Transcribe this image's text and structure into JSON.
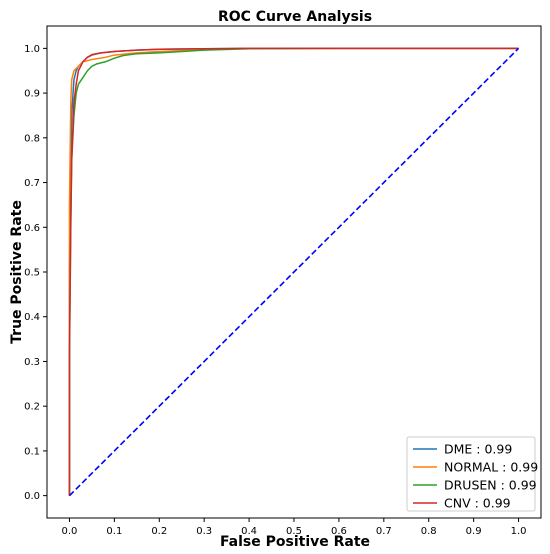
{
  "chart_data": {
    "type": "line",
    "title": "ROC Curve Analysis",
    "xlabel": "False Positive Rate",
    "ylabel": "True Positive Rate",
    "xlim": [
      -0.05,
      1.05
    ],
    "ylim": [
      -0.05,
      1.05
    ],
    "x_ticks": [
      0.0,
      0.1,
      0.2,
      0.3,
      0.4,
      0.5,
      0.6,
      0.7,
      0.8,
      0.9,
      1.0
    ],
    "y_ticks": [
      0.0,
      0.1,
      0.2,
      0.3,
      0.4,
      0.5,
      0.6,
      0.7,
      0.8,
      0.9,
      1.0
    ],
    "x_tick_labels": [
      "0.0",
      "0.1",
      "0.2",
      "0.3",
      "0.4",
      "0.5",
      "0.6",
      "0.7",
      "0.8",
      "0.9",
      "1.0"
    ],
    "y_tick_labels": [
      "0.0",
      "0.1",
      "0.2",
      "0.3",
      "0.4",
      "0.5",
      "0.6",
      "0.7",
      "0.8",
      "0.9",
      "1.0"
    ],
    "grid": false,
    "legend_position": "bottom-right",
    "series": [
      {
        "name": "DME : 0.99",
        "color": "#1f77b4",
        "x": [
          0.0,
          0.0,
          0.003,
          0.005,
          0.008,
          0.01,
          0.015,
          0.02,
          0.03,
          0.04,
          0.05,
          0.07,
          0.1,
          0.15,
          0.2,
          0.3,
          0.4,
          0.6,
          1.0
        ],
        "y": [
          0.0,
          0.5,
          0.75,
          0.85,
          0.9,
          0.93,
          0.95,
          0.96,
          0.97,
          0.98,
          0.985,
          0.99,
          0.993,
          0.996,
          0.998,
          0.999,
          1.0,
          1.0,
          1.0
        ]
      },
      {
        "name": "NORMAL : 0.99",
        "color": "#ff7f0e",
        "x": [
          0.0,
          0.0,
          0.003,
          0.005,
          0.01,
          0.02,
          0.03,
          0.05,
          0.08,
          0.1,
          0.15,
          0.2,
          0.3,
          0.4,
          0.6,
          1.0
        ],
        "y": [
          0.0,
          0.65,
          0.88,
          0.93,
          0.95,
          0.96,
          0.97,
          0.975,
          0.98,
          0.985,
          0.99,
          0.993,
          0.997,
          1.0,
          1.0,
          1.0
        ]
      },
      {
        "name": "DRUSEN : 0.99",
        "color": "#2ca02c",
        "x": [
          0.0,
          0.0,
          0.003,
          0.005,
          0.01,
          0.015,
          0.02,
          0.03,
          0.04,
          0.05,
          0.06,
          0.08,
          0.1,
          0.12,
          0.15,
          0.2,
          0.25,
          0.3,
          0.4,
          0.6,
          1.0
        ],
        "y": [
          0.0,
          0.3,
          0.6,
          0.75,
          0.85,
          0.9,
          0.92,
          0.935,
          0.95,
          0.96,
          0.965,
          0.97,
          0.978,
          0.984,
          0.988,
          0.99,
          0.993,
          0.996,
          0.999,
          1.0,
          1.0
        ]
      },
      {
        "name": "CNV : 0.99",
        "color": "#d62728",
        "x": [
          0.0,
          0.0,
          0.003,
          0.005,
          0.01,
          0.015,
          0.02,
          0.03,
          0.04,
          0.05,
          0.07,
          0.1,
          0.15,
          0.2,
          0.3,
          0.4,
          0.6,
          1.0
        ],
        "y": [
          0.0,
          0.32,
          0.62,
          0.75,
          0.88,
          0.92,
          0.95,
          0.97,
          0.98,
          0.986,
          0.99,
          0.993,
          0.996,
          0.998,
          0.999,
          1.0,
          1.0,
          1.0
        ]
      }
    ],
    "reference_line": {
      "color": "#0000ff",
      "style": "dashed",
      "x": [
        0.0,
        1.0
      ],
      "y": [
        0.0,
        1.0
      ]
    }
  }
}
